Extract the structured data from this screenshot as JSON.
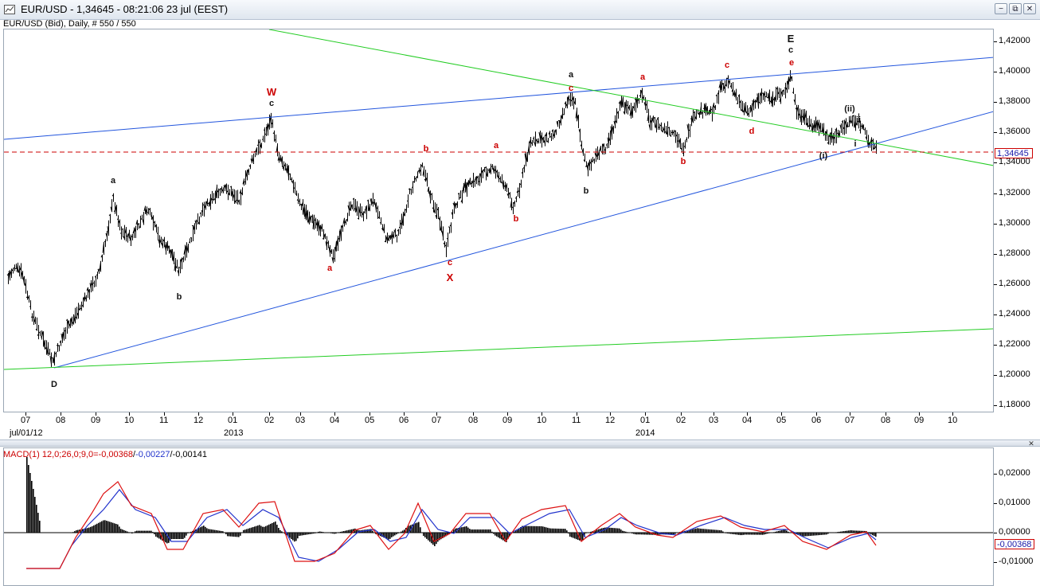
{
  "window": {
    "title": "EUR/USD - 1,34645 - 08:21:06  23 jul (EEST)",
    "subtitle": "EUR/USD (Bid), Daily, # 550 / 550",
    "buttons": {
      "minimize": "−",
      "restore": "⧉",
      "close": "✕"
    }
  },
  "colors": {
    "bars": "#000000",
    "up_trendline": "#2255dd",
    "green_line": "#22cc22",
    "current_price_line": "#cc0000",
    "macd_line": "#2233cc",
    "signal_line": "#dd1111",
    "wave_label_red": "#cc0000",
    "wave_label_black": "#111111"
  },
  "price_axis": {
    "ticks": [
      "1,42000",
      "1,40000",
      "1,38000",
      "1,36000",
      "1,34000",
      "1,32000",
      "1,30000",
      "1,28000",
      "1,26000",
      "1,24000",
      "1,22000",
      "1,20000",
      "1,18000"
    ],
    "current_price": "1,34645"
  },
  "time_axis": {
    "months": [
      "07",
      "08",
      "09",
      "10",
      "11",
      "12",
      "01",
      "02",
      "03",
      "04",
      "05",
      "06",
      "07",
      "08",
      "09",
      "10",
      "11",
      "12",
      "01",
      "02",
      "03",
      "04",
      "05",
      "06",
      "07",
      "08",
      "09",
      "10"
    ],
    "sub_labels": [
      "jul/01/12",
      "2013",
      "2014"
    ]
  },
  "wave_labels": [
    {
      "text": "W",
      "color": "red",
      "big": true
    },
    {
      "text": "c",
      "color": "black"
    },
    {
      "text": "a",
      "color": "black"
    },
    {
      "text": "b",
      "color": "black"
    },
    {
      "text": "D",
      "color": "black"
    },
    {
      "text": "a",
      "color": "red"
    },
    {
      "text": "b",
      "color": "red"
    },
    {
      "text": "c",
      "color": "red"
    },
    {
      "text": "X",
      "color": "red",
      "big": true
    },
    {
      "text": "a",
      "color": "red"
    },
    {
      "text": "b",
      "color": "red"
    },
    {
      "text": "a",
      "color": "black"
    },
    {
      "text": "c",
      "color": "red"
    },
    {
      "text": "b",
      "color": "black"
    },
    {
      "text": "a",
      "color": "red"
    },
    {
      "text": "b",
      "color": "red"
    },
    {
      "text": "c",
      "color": "red"
    },
    {
      "text": "d",
      "color": "red"
    },
    {
      "text": "E",
      "color": "black",
      "big": true
    },
    {
      "text": "c",
      "color": "black"
    },
    {
      "text": "e",
      "color": "red"
    },
    {
      "text": "(ii)",
      "color": "black"
    },
    {
      "text": "ii",
      "color": "black"
    },
    {
      "text": "i",
      "color": "black"
    },
    {
      "text": "(i)",
      "color": "black"
    }
  ],
  "macd": {
    "label": "MACD(1) 12,0;26,0;9,0=",
    "value1": "-0,00368",
    "value2": "-0,00227",
    "value3": "-0,00141",
    "ticks": [
      "0,02000",
      "0,01000",
      "0,00000",
      "-0,01000"
    ],
    "current": "-0,00368"
  }
}
